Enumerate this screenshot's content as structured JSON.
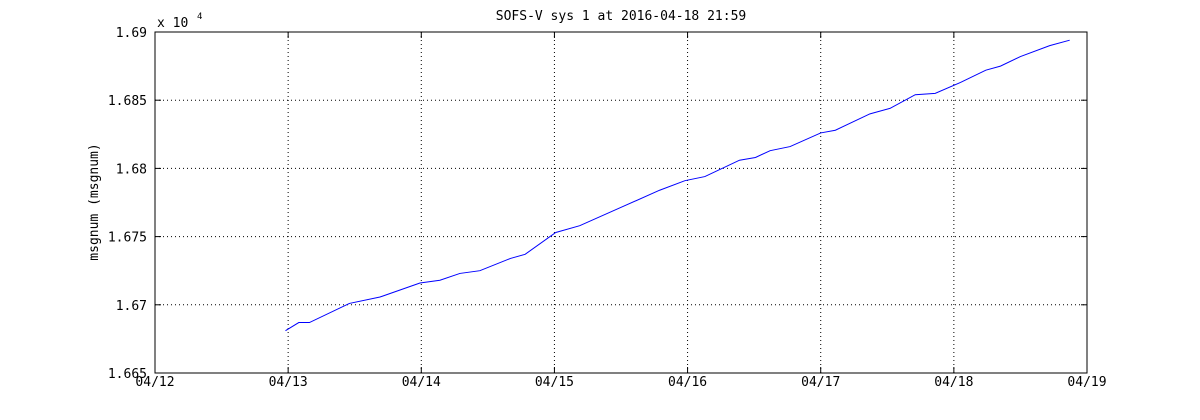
{
  "chart_data": {
    "type": "line",
    "title": "SOFS-V sys 1 at 2016-04-18 21:59",
    "ylabel": "msgnum (msgnum)",
    "y_multiplier": {
      "base": "x 10",
      "exponent": "4"
    },
    "x": [
      0.98,
      1.08,
      1.16,
      1.46,
      1.69,
      1.99,
      2.14,
      2.29,
      2.44,
      2.67,
      2.78,
      3.01,
      3.19,
      3.49,
      3.79,
      3.98,
      4.13,
      4.39,
      4.51,
      4.62,
      4.77,
      5.0,
      5.11,
      5.37,
      5.52,
      5.71,
      5.86,
      6.05,
      6.24,
      6.35,
      6.5,
      6.72,
      6.87
    ],
    "values": [
      1.6681,
      1.6687,
      1.6687,
      1.6701,
      1.67057,
      1.6716,
      1.6718,
      1.6723,
      1.6725,
      1.6734,
      1.6737,
      1.6753,
      1.6758,
      1.6771,
      1.6784,
      1.6791,
      1.6794,
      1.6806,
      1.6808,
      1.6813,
      1.6816,
      1.6826,
      1.6828,
      1.684,
      1.6844,
      1.6854,
      1.6855,
      1.6863,
      1.6872,
      1.6875,
      1.6882,
      1.689,
      1.6894
    ],
    "color": "#0000ff",
    "xlim": [
      0,
      7
    ],
    "xticks": [
      {
        "value": 0,
        "label": "04/12"
      },
      {
        "value": 1,
        "label": "04/13"
      },
      {
        "value": 2,
        "label": "04/14"
      },
      {
        "value": 3,
        "label": "04/15"
      },
      {
        "value": 4,
        "label": "04/16"
      },
      {
        "value": 5,
        "label": "04/17"
      },
      {
        "value": 6,
        "label": "04/18"
      },
      {
        "value": 7,
        "label": "04/19"
      }
    ],
    "ylim": [
      1.665,
      1.69
    ],
    "yticks": [
      1.665,
      1.67,
      1.675,
      1.68,
      1.685,
      1.69
    ],
    "grid": true
  }
}
